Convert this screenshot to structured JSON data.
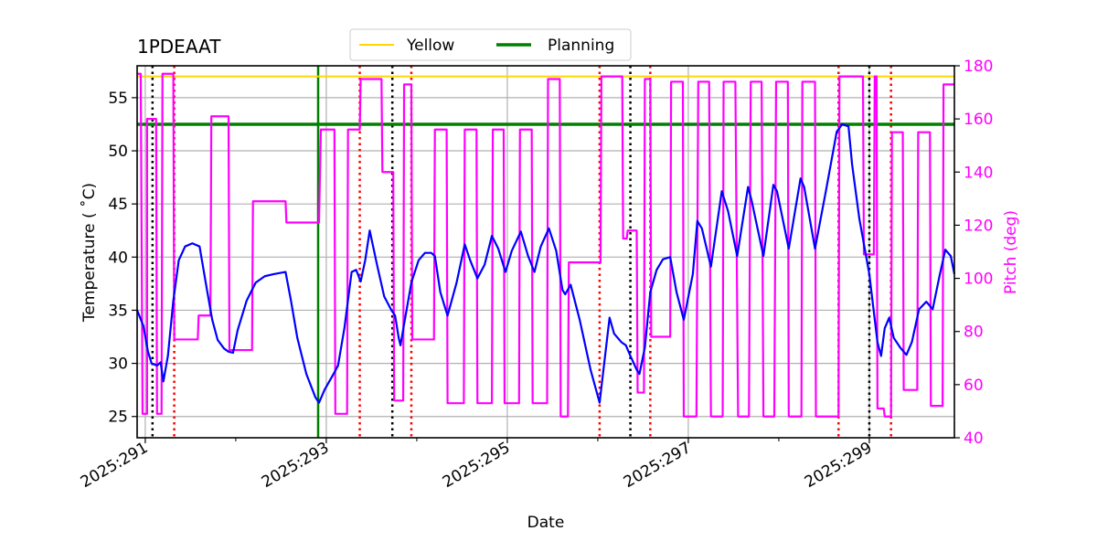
{
  "chart_data": {
    "type": "line",
    "title": "1PDEAAT",
    "xlabel": "Date",
    "ylabel": "Temperature ($^\\circ$C)",
    "ylabel_display": "Temperature ( ˚C)",
    "y2label": "Pitch (deg)",
    "xlim": [
      290.91,
      299.94
    ],
    "ylim": [
      23,
      58
    ],
    "y2lim": [
      40,
      180
    ],
    "x_ticks": [
      291,
      293,
      295,
      297,
      299
    ],
    "x_tick_labels": [
      "2025:291",
      "2025:293",
      "2025:295",
      "2025:297",
      "2025:299"
    ],
    "x_minor_ticks": [
      292,
      294,
      296,
      298
    ],
    "y_ticks": [
      25,
      30,
      35,
      40,
      45,
      50,
      55
    ],
    "y2_ticks": [
      40,
      60,
      80,
      100,
      120,
      140,
      160,
      180
    ],
    "grid": true,
    "legend": {
      "placement": "top-center",
      "entries": [
        {
          "name": "Yellow",
          "color": "#ffd700"
        },
        {
          "name": "Planning",
          "color": "#008000"
        }
      ]
    },
    "colors": {
      "temperature": "#0000ff",
      "pitch": "#ff00ff",
      "yellow": "#ffd700",
      "planning": "#008000",
      "grid": "#b0b0b0"
    },
    "yellow_limit": 57.0,
    "planning_limit": 52.5,
    "vertical_lines": {
      "black_dotted": [
        291.08,
        293.73,
        296.36,
        299.0
      ],
      "red_dotted": [
        291.32,
        293.37,
        293.94,
        296.02,
        296.58,
        298.66,
        299.24
      ],
      "green_solid": [
        292.91
      ]
    },
    "temperature": [
      [
        290.91,
        35.0
      ],
      [
        290.98,
        33.5
      ],
      [
        291.03,
        31.1
      ],
      [
        291.07,
        30.0
      ],
      [
        291.13,
        29.8
      ],
      [
        291.17,
        30.1
      ],
      [
        291.2,
        28.3
      ],
      [
        291.25,
        30.7
      ],
      [
        291.31,
        35.9
      ],
      [
        291.37,
        39.7
      ],
      [
        291.44,
        41.0
      ],
      [
        291.52,
        41.3
      ],
      [
        291.6,
        41.0
      ],
      [
        291.68,
        37.0
      ],
      [
        291.74,
        34.1
      ],
      [
        291.8,
        32.2
      ],
      [
        291.87,
        31.4
      ],
      [
        291.92,
        31.1
      ],
      [
        291.97,
        31.0
      ],
      [
        292.02,
        33.1
      ],
      [
        292.12,
        35.9
      ],
      [
        292.22,
        37.6
      ],
      [
        292.32,
        38.2
      ],
      [
        292.42,
        38.4
      ],
      [
        292.55,
        38.6
      ],
      [
        292.61,
        35.9
      ],
      [
        292.68,
        32.4
      ],
      [
        292.78,
        29.0
      ],
      [
        292.88,
        26.8
      ],
      [
        292.92,
        26.3
      ],
      [
        292.98,
        27.5
      ],
      [
        293.08,
        29.0
      ],
      [
        293.13,
        29.8
      ],
      [
        293.2,
        33.3
      ],
      [
        293.28,
        38.6
      ],
      [
        293.33,
        38.8
      ],
      [
        293.38,
        37.7
      ],
      [
        293.43,
        39.7
      ],
      [
        293.48,
        42.5
      ],
      [
        293.56,
        39.3
      ],
      [
        293.64,
        36.3
      ],
      [
        293.72,
        35.0
      ],
      [
        293.76,
        34.5
      ],
      [
        293.8,
        32.4
      ],
      [
        293.82,
        31.7
      ],
      [
        293.86,
        33.7
      ],
      [
        293.94,
        37.6
      ],
      [
        294.02,
        39.7
      ],
      [
        294.09,
        40.4
      ],
      [
        294.16,
        40.4
      ],
      [
        294.2,
        40.1
      ],
      [
        294.26,
        36.7
      ],
      [
        294.34,
        34.5
      ],
      [
        294.44,
        37.6
      ],
      [
        294.53,
        41.2
      ],
      [
        294.59,
        39.7
      ],
      [
        294.67,
        38.0
      ],
      [
        294.75,
        39.3
      ],
      [
        294.83,
        42.0
      ],
      [
        294.9,
        40.8
      ],
      [
        294.98,
        38.6
      ],
      [
        295.05,
        40.6
      ],
      [
        295.15,
        42.4
      ],
      [
        295.23,
        40.1
      ],
      [
        295.3,
        38.6
      ],
      [
        295.37,
        41.0
      ],
      [
        295.46,
        42.7
      ],
      [
        295.54,
        40.6
      ],
      [
        295.61,
        36.9
      ],
      [
        295.64,
        36.5
      ],
      [
        295.7,
        37.4
      ],
      [
        295.8,
        34.1
      ],
      [
        295.92,
        29.4
      ],
      [
        296.02,
        26.3
      ],
      [
        296.13,
        34.3
      ],
      [
        296.18,
        32.8
      ],
      [
        296.26,
        32.0
      ],
      [
        296.31,
        31.7
      ],
      [
        296.36,
        30.7
      ],
      [
        296.43,
        29.4
      ],
      [
        296.46,
        29.0
      ],
      [
        296.52,
        31.5
      ],
      [
        296.58,
        36.7
      ],
      [
        296.65,
        38.8
      ],
      [
        296.72,
        39.8
      ],
      [
        296.8,
        40.0
      ],
      [
        296.87,
        36.7
      ],
      [
        296.95,
        34.1
      ],
      [
        297.05,
        38.4
      ],
      [
        297.1,
        43.4
      ],
      [
        297.15,
        42.7
      ],
      [
        297.25,
        39.1
      ],
      [
        297.37,
        46.2
      ],
      [
        297.44,
        44.3
      ],
      [
        297.54,
        40.1
      ],
      [
        297.66,
        46.6
      ],
      [
        297.7,
        45.3
      ],
      [
        297.83,
        40.1
      ],
      [
        297.94,
        46.8
      ],
      [
        297.98,
        46.2
      ],
      [
        298.11,
        40.8
      ],
      [
        298.24,
        47.4
      ],
      [
        298.28,
        46.6
      ],
      [
        298.4,
        40.8
      ],
      [
        298.52,
        46.2
      ],
      [
        298.64,
        51.8
      ],
      [
        298.7,
        52.5
      ],
      [
        298.77,
        52.3
      ],
      [
        298.81,
        48.7
      ],
      [
        298.89,
        43.6
      ],
      [
        299.0,
        38.4
      ],
      [
        299.09,
        32.0
      ],
      [
        299.13,
        30.7
      ],
      [
        299.17,
        33.3
      ],
      [
        299.22,
        34.3
      ],
      [
        299.27,
        32.4
      ],
      [
        299.34,
        31.5
      ],
      [
        299.41,
        30.8
      ],
      [
        299.47,
        32.0
      ],
      [
        299.55,
        35.1
      ],
      [
        299.63,
        35.8
      ],
      [
        299.7,
        35.1
      ],
      [
        299.78,
        38.4
      ],
      [
        299.84,
        40.7
      ],
      [
        299.9,
        40.1
      ],
      [
        299.94,
        38.4
      ]
    ],
    "pitch_segments": [
      [
        290.91,
        290.95,
        177
      ],
      [
        290.97,
        291.02,
        49
      ],
      [
        291.02,
        291.12,
        160
      ],
      [
        291.13,
        291.18,
        49
      ],
      [
        291.19,
        291.31,
        177
      ],
      [
        291.32,
        291.58,
        77
      ],
      [
        291.59,
        291.72,
        86
      ],
      [
        291.73,
        291.92,
        161
      ],
      [
        291.93,
        292.18,
        73
      ],
      [
        292.19,
        292.55,
        129
      ],
      [
        292.56,
        292.92,
        121
      ],
      [
        292.94,
        293.09,
        156
      ],
      [
        293.1,
        293.23,
        49
      ],
      [
        293.24,
        293.37,
        156
      ],
      [
        293.38,
        293.61,
        175
      ],
      [
        293.62,
        293.74,
        140
      ],
      [
        293.75,
        293.85,
        54
      ],
      [
        293.86,
        293.94,
        173
      ],
      [
        293.95,
        294.19,
        77
      ],
      [
        294.2,
        294.33,
        156
      ],
      [
        294.34,
        294.52,
        53
      ],
      [
        294.53,
        294.66,
        156
      ],
      [
        294.67,
        294.83,
        53
      ],
      [
        294.84,
        294.96,
        156
      ],
      [
        294.97,
        295.13,
        53
      ],
      [
        295.14,
        295.27,
        156
      ],
      [
        295.28,
        295.44,
        53
      ],
      [
        295.45,
        295.58,
        175
      ],
      [
        295.59,
        295.67,
        48
      ],
      [
        295.68,
        296.03,
        106
      ],
      [
        296.04,
        296.27,
        176
      ],
      [
        296.28,
        296.32,
        115
      ],
      [
        296.33,
        296.43,
        118
      ],
      [
        296.44,
        296.51,
        57
      ],
      [
        296.52,
        296.58,
        175
      ],
      [
        296.59,
        296.8,
        78
      ],
      [
        296.81,
        296.94,
        174
      ],
      [
        296.95,
        297.09,
        48
      ],
      [
        297.11,
        297.23,
        174
      ],
      [
        297.25,
        297.38,
        48
      ],
      [
        297.39,
        297.52,
        174
      ],
      [
        297.55,
        297.67,
        48
      ],
      [
        297.69,
        297.81,
        174
      ],
      [
        297.83,
        297.95,
        48
      ],
      [
        297.97,
        298.1,
        174
      ],
      [
        298.11,
        298.25,
        48
      ],
      [
        298.26,
        298.4,
        174
      ],
      [
        298.41,
        298.66,
        48
      ],
      [
        298.67,
        298.93,
        176
      ],
      [
        298.94,
        299.05,
        109
      ],
      [
        299.06,
        299.08,
        176
      ],
      [
        299.09,
        299.16,
        51
      ],
      [
        299.17,
        299.24,
        48
      ],
      [
        299.25,
        299.37,
        155
      ],
      [
        299.38,
        299.53,
        58
      ],
      [
        299.54,
        299.67,
        155
      ],
      [
        299.68,
        299.81,
        52
      ],
      [
        299.82,
        299.94,
        173
      ]
    ]
  }
}
